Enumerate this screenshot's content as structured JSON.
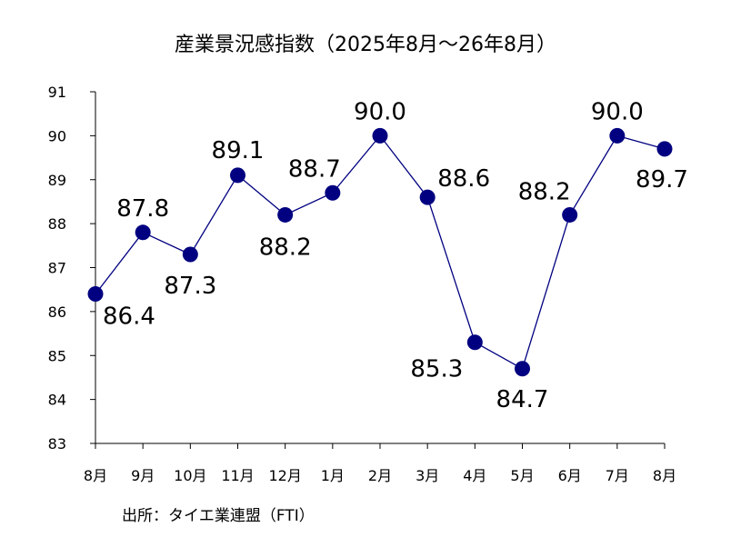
{
  "chart_data": {
    "type": "line",
    "title": "産業景況感指数（2025年8月～26年8月）",
    "categories": [
      "8月",
      "9月",
      "10月",
      "11月",
      "12月",
      "1月",
      "2月",
      "3月",
      "4月",
      "5月",
      "6月",
      "7月",
      "8月"
    ],
    "series": [
      {
        "values": [
          86.4,
          87.8,
          87.3,
          89.1,
          88.2,
          88.7,
          90.0,
          88.6,
          85.3,
          84.7,
          88.2,
          90.0,
          89.7
        ]
      }
    ],
    "data_labels": [
      "86.4",
      "87.8",
      "87.3",
      "89.1",
      "88.2",
      "88.7",
      "90.0",
      "88.6",
      "85.3",
      "84.7",
      "88.2",
      "90.0",
      "89.7"
    ],
    "ylim": [
      83,
      91
    ],
    "yticks": [
      "83",
      "84",
      "85",
      "86",
      "87",
      "88",
      "89",
      "90",
      "91"
    ],
    "grid": false,
    "legend": "none",
    "source": "出所：タイエ業連盟（FTI）",
    "colors": {
      "line": "#000080",
      "marker": "#000080",
      "axis": "#000000"
    }
  }
}
